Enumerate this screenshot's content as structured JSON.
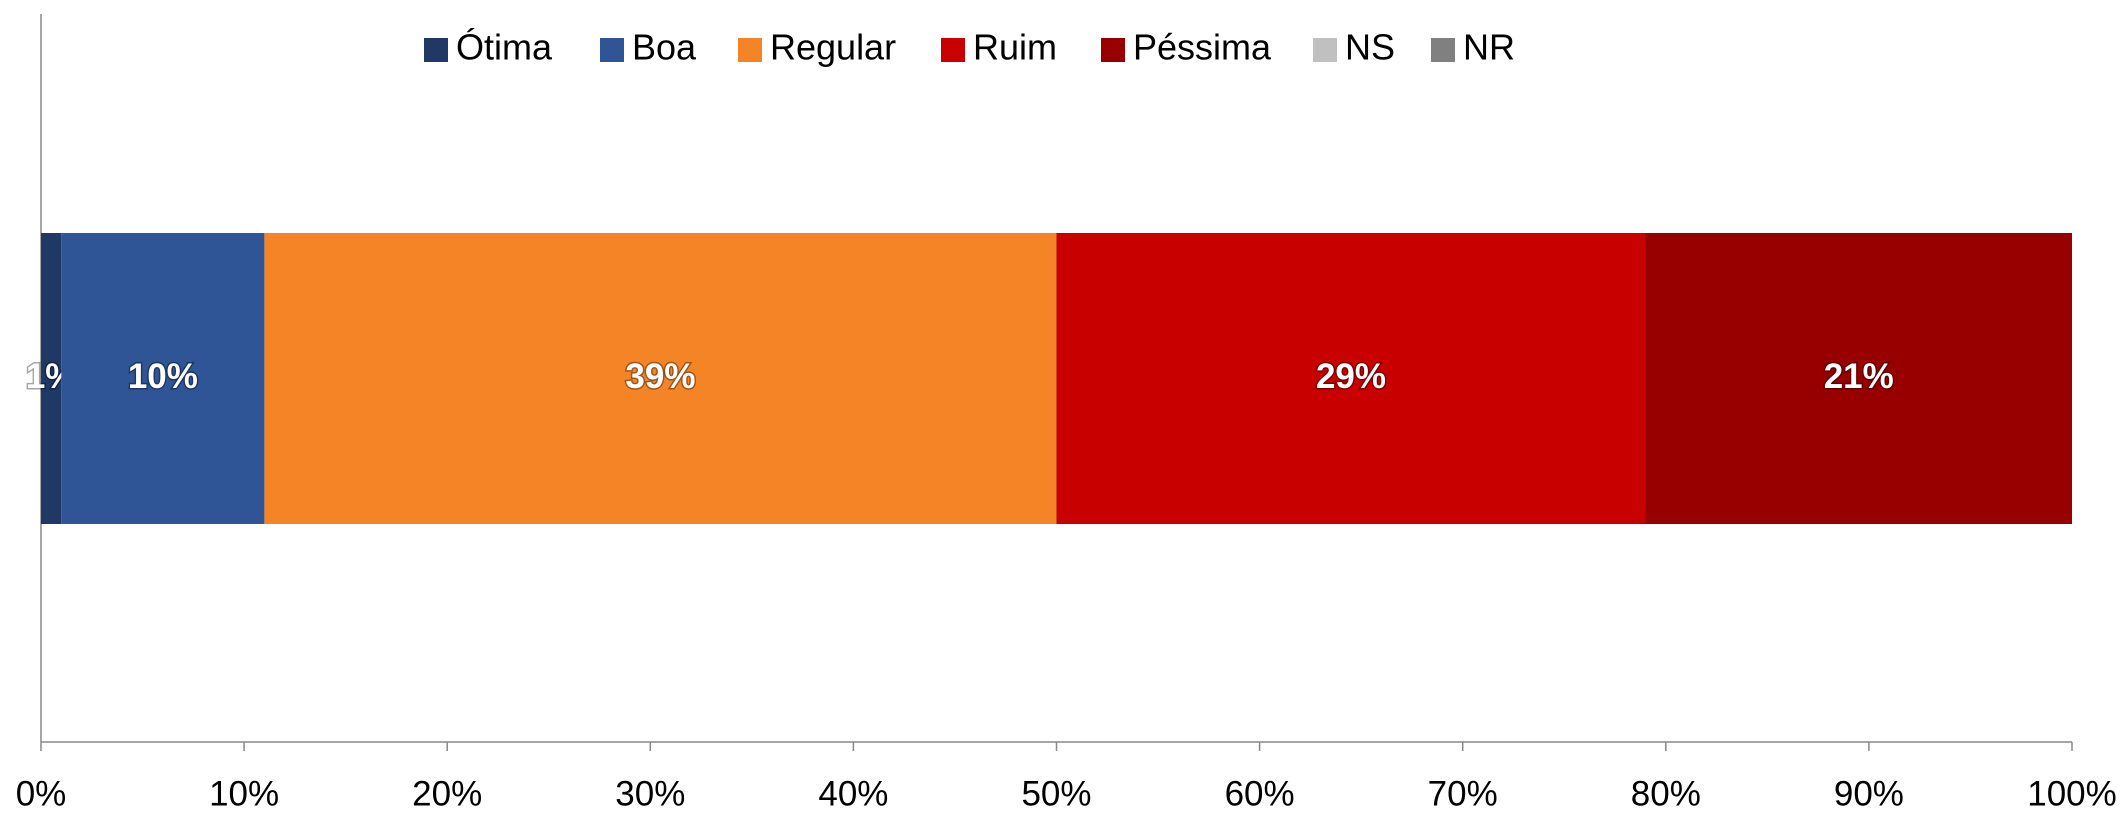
{
  "chart_data": {
    "type": "stacked_barh",
    "categories": [
      null
    ],
    "series": [
      {
        "name": "Ótima",
        "color": "#1f3864",
        "values": [
          1
        ],
        "value_labels": [
          "1%"
        ]
      },
      {
        "name": "Boa",
        "color": "#2f5597",
        "values": [
          10
        ],
        "value_labels": [
          "10%"
        ]
      },
      {
        "name": "Regular",
        "color": "#f58426",
        "values": [
          39
        ],
        "value_labels": [
          "39%"
        ]
      },
      {
        "name": "Ruim",
        "color": "#c80000",
        "values": [
          29
        ],
        "value_labels": [
          "29%"
        ]
      },
      {
        "name": "Péssima",
        "color": "#980000",
        "values": [
          21
        ],
        "value_labels": [
          "21%"
        ]
      },
      {
        "name": "NS",
        "color": "#c0c0c0",
        "values": [
          0
        ]
      },
      {
        "name": "NR",
        "color": "#808080",
        "values": [
          0
        ]
      }
    ],
    "xlim": [
      0,
      100
    ],
    "xticks": [
      {
        "value": 0,
        "label": "0%"
      },
      {
        "value": 10,
        "label": "10%"
      },
      {
        "value": 20,
        "label": "20%"
      },
      {
        "value": 30,
        "label": "30%"
      },
      {
        "value": 40,
        "label": "40%"
      },
      {
        "value": 50,
        "label": "50%"
      },
      {
        "value": 60,
        "label": "60%"
      },
      {
        "value": 70,
        "label": "70%"
      },
      {
        "value": 80,
        "label": "80%"
      },
      {
        "value": 90,
        "label": "90%"
      },
      {
        "value": 100,
        "label": "100%"
      }
    ],
    "grid": false,
    "legend": "top"
  }
}
